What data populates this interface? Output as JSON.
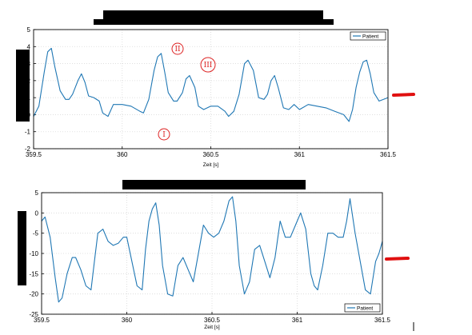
{
  "chart_data": [
    {
      "type": "line",
      "title": "",
      "xlabel": "Zeit [s]",
      "ylabel": "",
      "xlim": [
        359.5,
        361.5
      ],
      "ylim": [
        -2,
        5
      ],
      "x_ticks": [
        "359.5",
        "360",
        "360.5",
        "361",
        "361.5"
      ],
      "y_ticks": [
        "5",
        "4",
        "3",
        "2",
        "1",
        "0",
        "-1",
        "-2"
      ],
      "grid": true,
      "legend": "top-right",
      "series": [
        {
          "name": "Patient",
          "color": "#1f77b4",
          "x": [
            359.5,
            359.53,
            359.56,
            359.58,
            359.6,
            359.62,
            359.65,
            359.68,
            359.7,
            359.72,
            359.75,
            359.77,
            359.79,
            359.81,
            359.84,
            359.87,
            359.89,
            359.92,
            359.95,
            359.98,
            360.0,
            360.05,
            360.1,
            360.12,
            360.15,
            360.18,
            360.2,
            360.22,
            360.24,
            360.26,
            360.29,
            360.31,
            360.34,
            360.36,
            360.38,
            360.41,
            360.43,
            360.46,
            360.5,
            360.54,
            360.58,
            360.6,
            360.63,
            360.66,
            360.69,
            360.71,
            360.74,
            360.77,
            360.8,
            360.82,
            360.84,
            360.86,
            360.88,
            360.91,
            360.94,
            360.97,
            361.0,
            361.05,
            361.1,
            361.15,
            361.2,
            361.25,
            361.28,
            361.3,
            361.32,
            361.34,
            361.36,
            361.38,
            361.4,
            361.42,
            361.45,
            361.5
          ],
          "y": [
            -0.1,
            0.5,
            2.5,
            3.7,
            3.9,
            2.8,
            1.4,
            0.9,
            0.9,
            1.2,
            2.0,
            2.4,
            1.9,
            1.1,
            1.0,
            0.8,
            0.1,
            -0.1,
            0.6,
            0.6,
            0.6,
            0.5,
            0.2,
            0.1,
            0.9,
            2.6,
            3.4,
            3.6,
            2.5,
            1.3,
            0.8,
            0.8,
            1.3,
            2.1,
            2.3,
            1.6,
            0.5,
            0.3,
            0.5,
            0.5,
            0.2,
            -0.1,
            0.2,
            1.2,
            3.0,
            3.2,
            2.6,
            1.0,
            0.9,
            1.2,
            2.0,
            2.3,
            1.6,
            0.4,
            0.3,
            0.6,
            0.3,
            0.6,
            0.5,
            0.4,
            0.2,
            0.0,
            -0.4,
            0.3,
            1.6,
            2.5,
            3.1,
            3.2,
            2.4,
            1.3,
            0.8,
            1.0
          ]
        }
      ],
      "annotations": [
        "I",
        "II",
        "III"
      ]
    },
    {
      "type": "line",
      "title": "",
      "xlabel": "Zeit [s]",
      "ylabel": "",
      "xlim": [
        359.5,
        361.5
      ],
      "ylim": [
        -25,
        5
      ],
      "x_ticks": [
        "359.5",
        "360",
        "360.5",
        "361",
        "361.5"
      ],
      "y_ticks": [
        "5",
        "0",
        "-5",
        "-10",
        "-15",
        "-20",
        "-25"
      ],
      "grid": true,
      "legend": "bottom-right",
      "series": [
        {
          "name": "Patient",
          "color": "#1f77b4",
          "x": [
            359.5,
            359.52,
            359.55,
            359.58,
            359.6,
            359.62,
            359.65,
            359.68,
            359.7,
            359.73,
            359.76,
            359.79,
            359.81,
            359.83,
            359.86,
            359.89,
            359.92,
            359.95,
            359.98,
            360.0,
            360.03,
            360.06,
            360.09,
            360.11,
            360.13,
            360.15,
            360.17,
            360.19,
            360.21,
            360.24,
            360.27,
            360.3,
            360.33,
            360.36,
            360.39,
            360.42,
            360.45,
            360.48,
            360.51,
            360.54,
            360.57,
            360.6,
            360.62,
            360.64,
            360.66,
            360.69,
            360.72,
            360.75,
            360.78,
            360.81,
            360.84,
            360.87,
            360.9,
            360.93,
            360.96,
            360.99,
            361.02,
            361.05,
            361.08,
            361.1,
            361.12,
            361.15,
            361.18,
            361.21,
            361.24,
            361.27,
            361.29,
            361.31,
            361.34,
            361.37,
            361.4,
            361.43,
            361.46,
            361.48,
            361.5
          ],
          "y": [
            -2,
            -1,
            -6,
            -16,
            -22,
            -21,
            -15,
            -11,
            -11,
            -14,
            -18,
            -19,
            -12,
            -5,
            -4,
            -7,
            -8,
            -7.5,
            -6,
            -6,
            -12,
            -18,
            -19,
            -9,
            -2,
            1,
            2.5,
            -3,
            -13,
            -20,
            -20.5,
            -13,
            -11,
            -14,
            -17,
            -10,
            -3,
            -5,
            -6,
            -5,
            -2,
            3,
            4,
            -2,
            -13,
            -20,
            -17,
            -9,
            -8,
            -12,
            -16,
            -11,
            -2,
            -6,
            -6,
            -3,
            0,
            -4,
            -15,
            -18,
            -19,
            -13,
            -5,
            -5,
            -6,
            -6,
            -2,
            3.5,
            -5,
            -12,
            -19,
            -20,
            -12,
            -10,
            -7
          ]
        }
      ]
    }
  ]
}
